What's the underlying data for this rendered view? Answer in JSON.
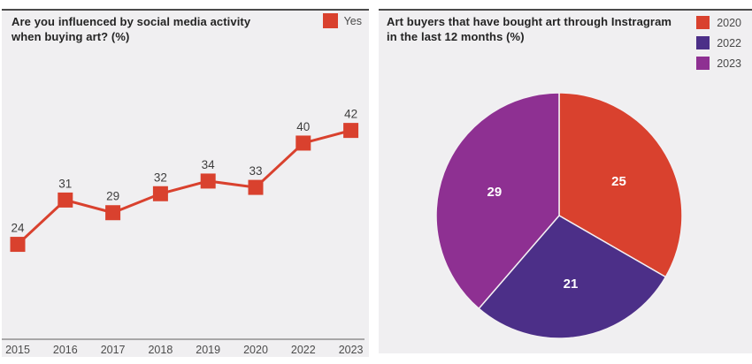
{
  "panel_background": "#f0eff1",
  "chart_data": [
    {
      "type": "line",
      "title": "Are you influenced by social media activity\nwhen buying art? (%)",
      "legend_position": "top-right",
      "legend": [
        {
          "label": "Yes",
          "color": "#d9412e"
        }
      ],
      "categories": [
        "2015",
        "2016",
        "2017",
        "2018",
        "2019",
        "2020",
        "2022",
        "2023"
      ],
      "series": [
        {
          "name": "Yes",
          "color": "#d9412e",
          "values": [
            24,
            31,
            29,
            32,
            34,
            33,
            40,
            42
          ]
        }
      ],
      "marker": "square",
      "data_labels": true,
      "ylim": [
        9,
        52
      ],
      "grid": false,
      "xlabel": "",
      "ylabel": ""
    },
    {
      "type": "pie",
      "title": "Art buyers that have bought art through Instragram\nin the last 12 months (%)",
      "legend_position": "top-right",
      "direction": "clockwise",
      "start_angle_deg": 0,
      "slices": [
        {
          "label": "2020",
          "value": 25,
          "color": "#d9412e"
        },
        {
          "label": "2022",
          "value": 21,
          "color": "#4c2f88"
        },
        {
          "label": "2023",
          "value": 29,
          "color": "#8e3092"
        }
      ],
      "data_label_color": "#ffffff"
    }
  ]
}
